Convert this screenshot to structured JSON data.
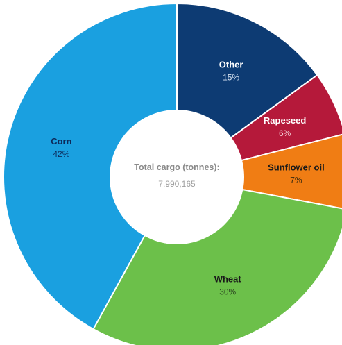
{
  "chart_data": {
    "type": "pie",
    "donut": true,
    "center_title": "Total cargo (tonnes):",
    "center_value": "7,990,165",
    "slices": [
      {
        "name": "Other",
        "value": 15,
        "label": "15%",
        "color": "#0d3b73",
        "text_color": "#ffffff",
        "pct_color": "#d6e2f0"
      },
      {
        "name": "Rapeseed",
        "value": 6,
        "label": "6%",
        "color": "#b5193a",
        "text_color": "#ffffff",
        "pct_color": "#f0c8d0"
      },
      {
        "name": "Sunflower oil",
        "value": 7,
        "label": "7%",
        "color": "#f07d14",
        "text_color": "#1a1a1a",
        "pct_color": "#3a2a10"
      },
      {
        "name": "Wheat",
        "value": 30,
        "label": "30%",
        "color": "#6cc04a",
        "text_color": "#1a1a1a",
        "pct_color": "#2e4a22"
      },
      {
        "name": "Corn",
        "value": 42,
        "label": "42%",
        "color": "#1aa0e0",
        "text_color": "#0d2a5a",
        "pct_color": "#0d2a5a"
      }
    ]
  }
}
